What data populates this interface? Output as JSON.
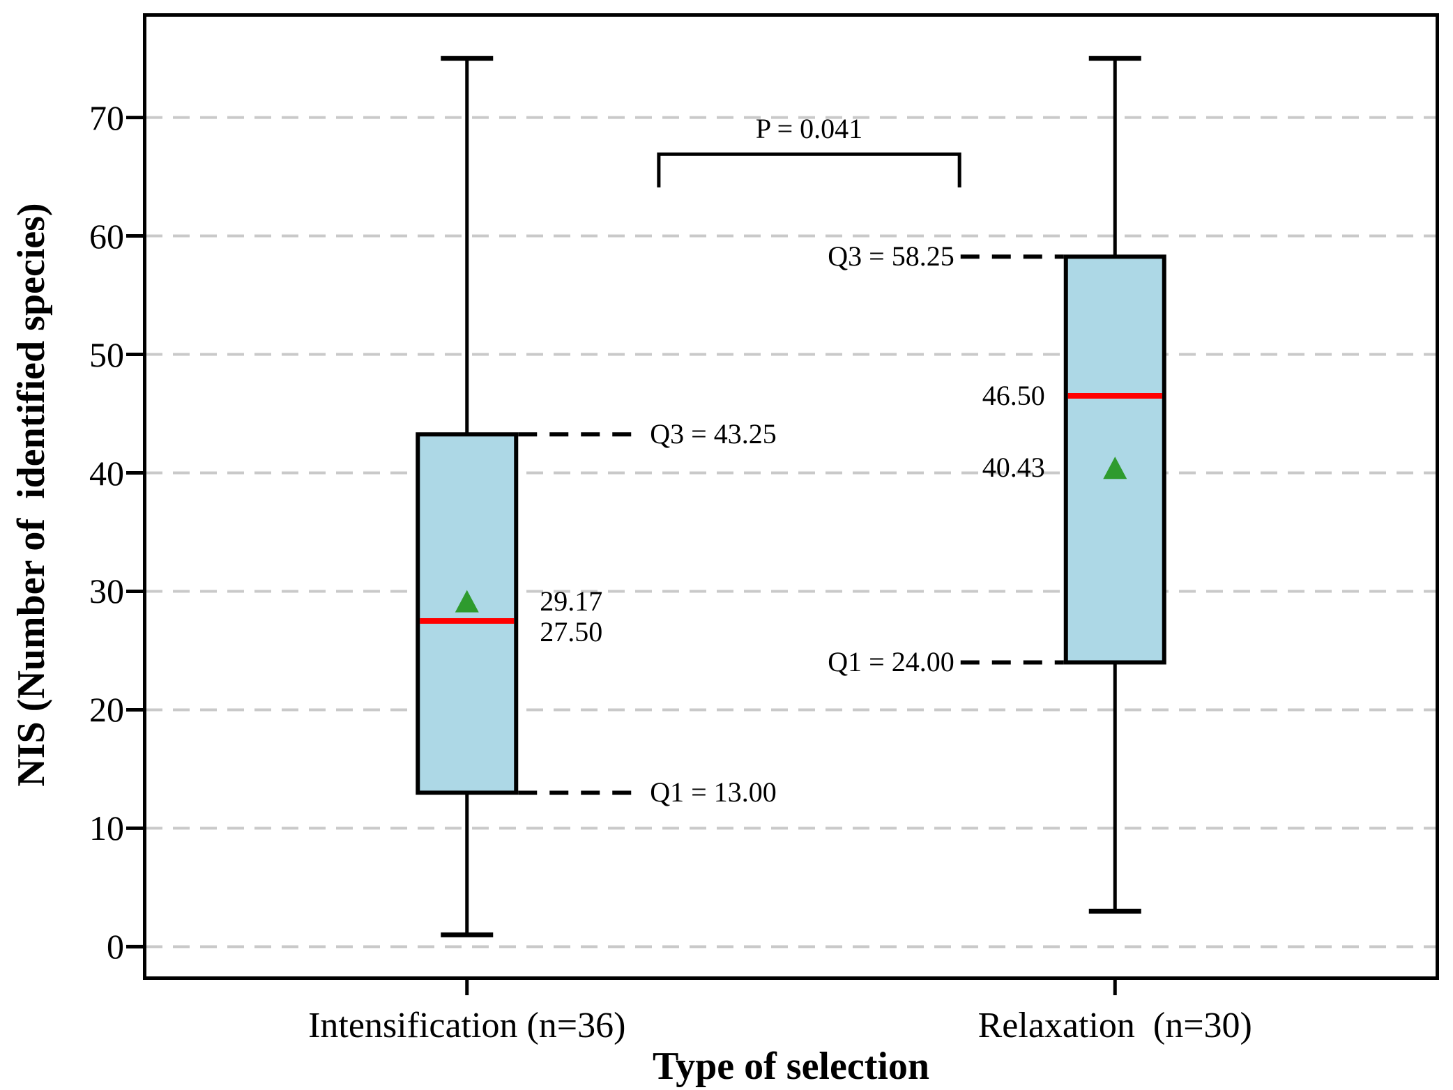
{
  "chart_data": {
    "type": "boxplot",
    "title": "",
    "xlabel": "Type of selection",
    "ylabel": "NIS (Number of  identified species)",
    "ylim": [
      -2.8,
      78.8
    ],
    "yticks": [
      0,
      10,
      20,
      30,
      40,
      50,
      60,
      70
    ],
    "grid": "horizontal dashed lines at each y tick",
    "legend": "none",
    "categories": [
      "Intensification (n=36)",
      "Relaxation  (n=30)"
    ],
    "boxes": [
      {
        "category": "Intensification (n=36)",
        "n": 36,
        "x_frac": 0.25,
        "whisker_low": 1,
        "q1": 13.0,
        "median": 27.5,
        "mean": 29.17,
        "q3": 43.25,
        "whisker_high": 75,
        "q1_label": "Q1 = 13.00",
        "q3_label": "Q3 = 43.25",
        "mean_label": "29.17",
        "median_label": "27.50",
        "label_side": "right"
      },
      {
        "category": "Relaxation  (n=30)",
        "n": 30,
        "x_frac": 0.75,
        "whisker_low": 3,
        "q1": 24.0,
        "median": 46.5,
        "mean": 40.43,
        "q3": 58.25,
        "whisker_high": 75,
        "q1_label": "Q1 = 24.00",
        "q3_label": "Q3 = 58.25",
        "mean_label": "40.43",
        "median_label": "46.50",
        "label_side": "left"
      }
    ],
    "significance": {
      "label": "P = 0.041",
      "x1_frac": 0.398,
      "x2_frac": 0.63,
      "y_value": 66.9,
      "drop": 2.8
    },
    "colors": {
      "box_fill": "#ADD8E6",
      "box_edge": "#000000",
      "median": "#FF0000",
      "mean": "#2E9B2E",
      "grid": "#C9C9C9",
      "leader": "#000000"
    }
  }
}
